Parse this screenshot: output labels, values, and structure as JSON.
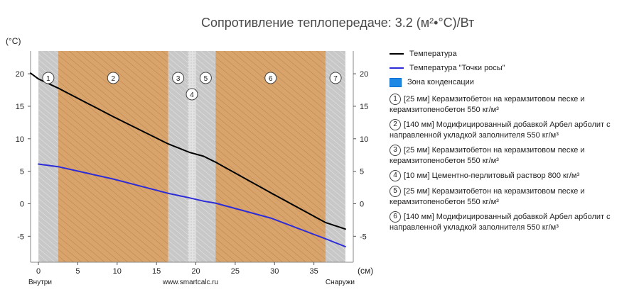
{
  "chart_data": {
    "type": "line",
    "title": "Сопротивление теплопередаче: 3.2  (м²•°С)/Вт",
    "ylabel": "(°С)",
    "xlabel": "(см)",
    "xlim": [
      -1,
      40
    ],
    "ylim": [
      -9,
      23.5
    ],
    "x_ticks": [
      0,
      5,
      10,
      15,
      20,
      25,
      30,
      35
    ],
    "y_ticks": [
      -5,
      0,
      5,
      10,
      15,
      20
    ],
    "x_bottom_labels": {
      "left": "Внутри",
      "center": "www.smartcalc.ru",
      "right": "Снаружи"
    },
    "grid": false,
    "legend_position": "right",
    "series": [
      {
        "name": "Температура",
        "color": "#000000",
        "x": [
          -1,
          0,
          2.5,
          9.5,
          16.5,
          19.2,
          21,
          22.5,
          29.5,
          36.5,
          39
        ],
        "y": [
          20.1,
          19.2,
          17.8,
          13.4,
          9.2,
          7.9,
          7.3,
          6.4,
          1.7,
          -2.9,
          -3.9
        ]
      },
      {
        "name": "Температура \"Точки росы\"",
        "color": "#2b2bd8",
        "x": [
          0,
          2.5,
          9.5,
          16.5,
          19.2,
          21,
          22.5,
          29.5,
          36.5,
          39
        ],
        "y": [
          6.1,
          5.7,
          3.8,
          1.6,
          0.9,
          0.4,
          0.1,
          -2.2,
          -5.4,
          -6.6
        ]
      }
    ],
    "condensation_label": "Зона конденсации",
    "condensation_color": "#1e88e5",
    "layers": [
      {
        "num": "1",
        "start": 0,
        "end": 2.5,
        "kind": "concrete",
        "text": "[25 мм] Керамзитобетон на керамзитовом песке и керамзитопенобетон 550 кг/м³"
      },
      {
        "num": "2",
        "start": 2.5,
        "end": 16.5,
        "kind": "wood",
        "text": "[140 мм] Модифицированный добавкой Арбел арболит с направленной укладкой заполнителя 550 кг/м³"
      },
      {
        "num": "3",
        "start": 16.5,
        "end": 19,
        "kind": "concrete",
        "text": "[25 мм] Керамзитобетон на керамзитовом песке и керамзитопенобетон 550 кг/м³"
      },
      {
        "num": "4",
        "start": 19,
        "end": 20,
        "kind": "mortar",
        "text": "[10 мм] Цементно-перлитовый раствор 800 кг/м³"
      },
      {
        "num": "5",
        "start": 20,
        "end": 22.5,
        "kind": "concrete",
        "text": "[25 мм] Керамзитобетон на керамзитовом песке и керамзитопенобетон 550 кг/м³"
      },
      {
        "num": "6",
        "start": 22.5,
        "end": 36.5,
        "kind": "wood",
        "text": "[140 мм] Модифицированный добавкой Арбел арболит с направленной укладкой заполнителя 550 кг/м³"
      },
      {
        "num": "7",
        "start": 36.5,
        "end": 39,
        "kind": "concrete",
        "text": ""
      }
    ],
    "colors": {
      "concrete": "#c8c8c8",
      "wood": "#d9a46b",
      "mortar": "#e2e2e2"
    }
  }
}
